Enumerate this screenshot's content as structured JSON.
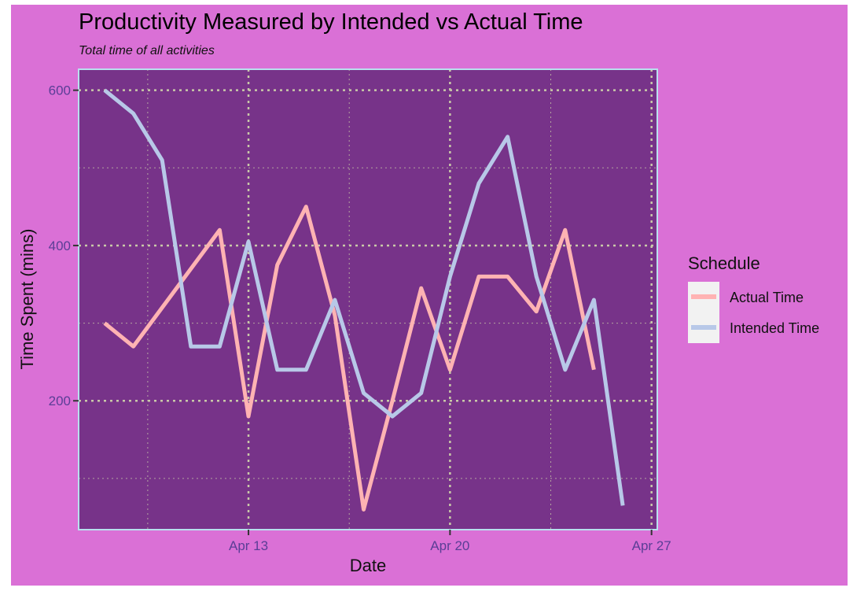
{
  "chart_data": {
    "type": "line",
    "title": "Productivity Measured by Intended vs Actual Time",
    "subtitle": "Total time of all activities",
    "xlabel": "Date",
    "ylabel": "Time Spent (mins)",
    "x": [
      "2025-04-08",
      "2025-04-09",
      "2025-04-10",
      "2025-04-11",
      "2025-04-12",
      "2025-04-13",
      "2025-04-14",
      "2025-04-15",
      "2025-04-16",
      "2025-04-17",
      "2025-04-18",
      "2025-04-19",
      "2025-04-20",
      "2025-04-21",
      "2025-04-22",
      "2025-04-23",
      "2025-04-24",
      "2025-04-25",
      "2025-04-26",
      "2025-04-27"
    ],
    "x_ticks": [
      {
        "date": "2025-04-13",
        "label": "Apr 13"
      },
      {
        "date": "2025-04-20",
        "label": "Apr 20"
      },
      {
        "date": "2025-04-27",
        "label": "Apr 27"
      }
    ],
    "xlim": [
      "2025-04-07.1",
      "2025-04-27.2"
    ],
    "y_ticks": [
      200,
      400,
      600
    ],
    "ylim": [
      34,
      627
    ],
    "grid": true,
    "legend": {
      "title": "Schedule",
      "position": "right"
    },
    "series": [
      {
        "name": "Actual Time",
        "color": "#ffb3b3",
        "values": [
          300,
          270,
          320,
          370,
          420,
          180,
          375,
          450,
          310,
          60,
          200,
          345,
          240,
          360,
          360,
          315,
          420,
          240,
          null,
          null
        ]
      },
      {
        "name": "Intended Time",
        "color": "#b8c8e8",
        "values": [
          600,
          570,
          510,
          270,
          270,
          405,
          240,
          240,
          330,
          210,
          180,
          210,
          360,
          480,
          540,
          360,
          240,
          330,
          65,
          null
        ]
      }
    ]
  },
  "colors": {
    "background": "#da70d6",
    "panel": "#773389",
    "panel_border": "#b8e0ee",
    "grid": "#c9c9a8",
    "tick_label": "#5a3e96"
  }
}
